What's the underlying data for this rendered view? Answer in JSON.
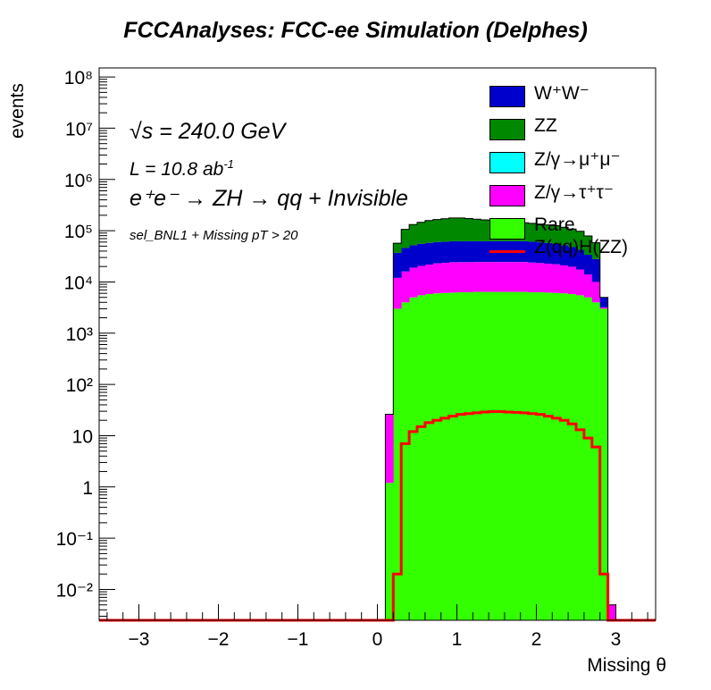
{
  "title": "FCCAnalyses: FCC-ee Simulation (Delphes)",
  "annotations": {
    "energy": "√s = 240.0 GeV",
    "lumi": "L = 10.8 ab",
    "lumi_sup": "-1",
    "process": "e⁺e⁻ → ZH → qq + Invisible",
    "selection": "sel_BNL1 + Missing pT > 20"
  },
  "chart_data": {
    "type": "bar",
    "stacked": true,
    "xlabel": "Missing θ",
    "ylabel": "events",
    "xlim": [
      -3.5,
      3.5
    ],
    "ylim": [
      0.0025,
      150000000
    ],
    "yscale": "log",
    "xticks": [
      -3,
      -2,
      -1,
      0,
      1,
      2,
      3
    ],
    "xtick_labels": [
      "−3",
      "−2",
      "−1",
      "0",
      "1",
      "2",
      "3"
    ],
    "yticks": [
      0.01,
      0.1,
      1,
      10,
      100,
      1000,
      10000,
      100000,
      1000000,
      10000000,
      100000000
    ],
    "ytick_labels": [
      "10⁻²",
      "10⁻¹",
      "1",
      "10",
      "10²",
      "10³",
      "10⁴",
      "10⁵",
      "10⁶",
      "10⁷",
      "10⁸"
    ],
    "bin_edges_start": 0.1,
    "bin_width": 0.1,
    "x": [
      0.15,
      0.25,
      0.35,
      0.45,
      0.55,
      0.65,
      0.75,
      0.85,
      0.95,
      1.05,
      1.15,
      1.25,
      1.35,
      1.45,
      1.55,
      1.65,
      1.75,
      1.85,
      1.95,
      2.05,
      2.15,
      2.25,
      2.35,
      2.45,
      2.55,
      2.65,
      2.75,
      2.85,
      2.95
    ],
    "legend_position": "top-right",
    "series": [
      {
        "name": "Rare",
        "color": "#33ff00",
        "values": [
          1.2,
          3000,
          4000,
          5000,
          5500,
          5800,
          6000,
          6100,
          6200,
          6300,
          6300,
          6400,
          6400,
          6400,
          6400,
          6400,
          6400,
          6400,
          6300,
          6300,
          6200,
          6100,
          6000,
          5800,
          5500,
          5000,
          4000,
          3000,
          0.0025
        ]
      },
      {
        "name": "Z/γ→τ⁺τ⁻",
        "color": "#ff00ff",
        "values": [
          25,
          9000,
          12000,
          14000,
          15000,
          16000,
          17000,
          17500,
          18000,
          18000,
          18000,
          18000,
          18000,
          18000,
          18000,
          18000,
          18000,
          18000,
          17500,
          17000,
          16500,
          16000,
          15000,
          14000,
          12000,
          9000,
          6000,
          200,
          0.0025
        ]
      },
      {
        "name": "Z/γ→μ⁺μ⁻",
        "color": "#00ffff",
        "values": [
          0,
          10,
          20,
          30,
          40,
          50,
          60,
          70,
          80,
          80,
          80,
          80,
          80,
          80,
          80,
          80,
          80,
          80,
          70,
          60,
          50,
          40,
          30,
          20,
          10,
          5,
          2,
          0,
          0
        ]
      },
      {
        "name": "W⁺W⁻",
        "color": "#0000cc",
        "values": [
          0,
          25000,
          30000,
          33000,
          35000,
          36000,
          37000,
          37000,
          38000,
          38000,
          38000,
          38000,
          38000,
          38000,
          38000,
          38000,
          38000,
          38000,
          37000,
          36000,
          35000,
          33000,
          31000,
          28000,
          25000,
          20000,
          18000,
          1800,
          0
        ]
      },
      {
        "name": "ZZ",
        "color": "#008800",
        "values": [
          0,
          20000,
          60000,
          80000,
          90000,
          100000,
          105000,
          110000,
          115000,
          115000,
          110000,
          105000,
          100000,
          95000,
          90000,
          85000,
          82000,
          80000,
          78000,
          75000,
          72000,
          70000,
          65000,
          60000,
          55000,
          45000,
          30000,
          0,
          0
        ]
      },
      {
        "name": "Z(qq)H(ZZ)",
        "color": "#ff0000",
        "overlay": true,
        "values": [
          0,
          0.02,
          7,
          12,
          15,
          18,
          20,
          22,
          24,
          26,
          27,
          28,
          29,
          29.5,
          29.5,
          29,
          28.5,
          28,
          27,
          26,
          24,
          22,
          20,
          17,
          13,
          9,
          6,
          0.02,
          0
        ]
      }
    ]
  }
}
